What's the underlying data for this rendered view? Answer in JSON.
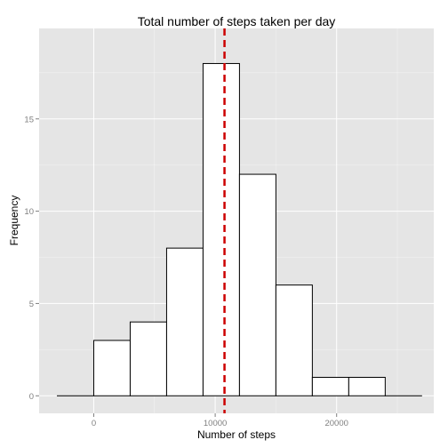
{
  "chart_data": {
    "type": "bar",
    "title": "Total number of steps taken per day",
    "xlabel": "Number of steps",
    "ylabel": "Frequency",
    "xlim": [
      -4500,
      28000
    ],
    "ylim": [
      -0.95,
      19.9
    ],
    "x_ticks": [
      0,
      10000,
      20000
    ],
    "x_tick_labels": [
      "0",
      "10000",
      "20000"
    ],
    "y_ticks": [
      0,
      5,
      10,
      15
    ],
    "y_tick_labels": [
      "0",
      "5",
      "10",
      "15"
    ],
    "bin_width": 3000,
    "bins": [
      {
        "start": -3000,
        "end": 0,
        "count": 0
      },
      {
        "start": 0,
        "end": 3000,
        "count": 3
      },
      {
        "start": 3000,
        "end": 6000,
        "count": 4
      },
      {
        "start": 6000,
        "end": 9000,
        "count": 8
      },
      {
        "start": 9000,
        "end": 12000,
        "count": 18
      },
      {
        "start": 12000,
        "end": 15000,
        "count": 12
      },
      {
        "start": 15000,
        "end": 18000,
        "count": 6
      },
      {
        "start": 18000,
        "end": 21000,
        "count": 1
      },
      {
        "start": 21000,
        "end": 24000,
        "count": 1
      },
      {
        "start": 24000,
        "end": 27000,
        "count": 0
      }
    ],
    "mean_line": {
      "x": 10766,
      "color": "#cc0000",
      "style": "dashed"
    },
    "grid": true,
    "panel_background": "#e5e5e5",
    "grid_color": "#ffffff",
    "bar_fill": "#ffffff",
    "bar_outline": "#000000"
  }
}
